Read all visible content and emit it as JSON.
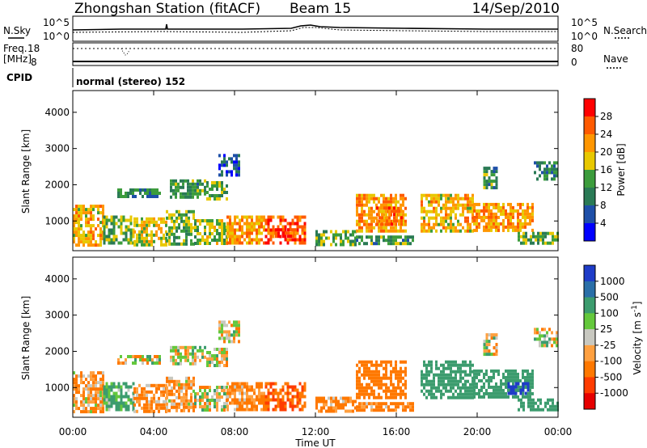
{
  "header": {
    "title": "Zhongshan Station (fitACF)",
    "beam": "Beam 15",
    "date": "14/Sep/2010"
  },
  "noise_panel": {
    "left_label": "N.Sky",
    "right_label": "N.Search",
    "left_ticks": [
      "10^5",
      "10^0"
    ],
    "right_ticks": [
      "10^5",
      "10^0"
    ]
  },
  "freq_panel": {
    "left_label_1": "Freq.",
    "left_label_2": "[MHz]",
    "left_ticks": [
      "18",
      "8"
    ],
    "right_ticks": [
      "80",
      "0"
    ],
    "right_label": "Nave"
  },
  "cpid_panel": {
    "label": "CPID",
    "text": "normal (stereo) 152"
  },
  "x_axis": {
    "label": "Time UT",
    "ticks": [
      "00:00",
      "04:00",
      "08:00",
      "12:00",
      "16:00",
      "20:00",
      "00:00"
    ]
  },
  "colorbars": {
    "power": {
      "label": "Power [dB]",
      "ticks": [
        "28",
        "24",
        "20",
        "16",
        "12",
        "8",
        "4"
      ],
      "colors": [
        "#ff0000",
        "#ff5a00",
        "#ff9600",
        "#e8c800",
        "#3c9c3c",
        "#2a7a55",
        "#1e4fa8",
        "#0000ff"
      ]
    },
    "velocity": {
      "label": "Velocity [m s^-1]",
      "label_main": "Velocity [m s",
      "label_exp": "-1",
      "label_close": "]",
      "ticks": [
        "1000",
        "500",
        "100",
        "25",
        "-25",
        "-100",
        "-500",
        "-1000"
      ],
      "colors": [
        "#1e3cc8",
        "#2a6fa8",
        "#3c9c6e",
        "#64c83c",
        "#c8c8c0",
        "#ffa040",
        "#ff7800",
        "#ff3c00",
        "#e60000"
      ]
    }
  },
  "chart_data": [
    {
      "type": "heatmap",
      "name": "power",
      "xlabel": "Time UT",
      "ylabel": "Slant Range [km]",
      "xlim": [
        0,
        24
      ],
      "ylim": [
        180,
        4600
      ],
      "yticks": [
        1000,
        2000,
        3000,
        4000
      ],
      "colorbar": "Power [dB]",
      "regions": [
        {
          "t": [
            0.0,
            1.5
          ],
          "r": [
            350,
            1450
          ],
          "v": 20
        },
        {
          "t": [
            1.5,
            3.0
          ],
          "r": [
            350,
            1150
          ],
          "v": 14
        },
        {
          "t": [
            3.0,
            4.6
          ],
          "r": [
            350,
            1100
          ],
          "v": 18
        },
        {
          "t": [
            4.6,
            6.0
          ],
          "r": [
            350,
            1300
          ],
          "v": 14
        },
        {
          "t": [
            6.0,
            7.6
          ],
          "r": [
            350,
            1050
          ],
          "v": 16
        },
        {
          "t": [
            7.6,
            9.5
          ],
          "r": [
            400,
            1150
          ],
          "v": 22
        },
        {
          "t": [
            9.5,
            11.5
          ],
          "r": [
            400,
            1150
          ],
          "v": 26
        },
        {
          "t": [
            10.0,
            11.0
          ],
          "r": [
            550,
            800
          ],
          "v": 28
        },
        {
          "t": [
            2.2,
            4.3
          ],
          "r": [
            1700,
            1900
          ],
          "v": 10
        },
        {
          "t": [
            4.8,
            6.6
          ],
          "r": [
            1650,
            2150
          ],
          "v": 12
        },
        {
          "t": [
            6.6,
            7.6
          ],
          "r": [
            1600,
            2100
          ],
          "v": 14
        },
        {
          "t": [
            7.2,
            8.2
          ],
          "r": [
            2250,
            2850
          ],
          "v": 6
        },
        {
          "t": [
            12.0,
            14.0
          ],
          "r": [
            350,
            750
          ],
          "v": 14
        },
        {
          "t": [
            14.0,
            16.8
          ],
          "r": [
            400,
            600
          ],
          "v": 12
        },
        {
          "t": [
            14.0,
            16.5
          ],
          "r": [
            700,
            1750
          ],
          "v": 22
        },
        {
          "t": [
            15.0,
            16.3
          ],
          "r": [
            950,
            1400
          ],
          "v": 26
        },
        {
          "t": [
            17.2,
            19.8
          ],
          "r": [
            700,
            1750
          ],
          "v": 20
        },
        {
          "t": [
            19.8,
            22.8
          ],
          "r": [
            700,
            1500
          ],
          "v": 22
        },
        {
          "t": [
            22.0,
            24.0
          ],
          "r": [
            350,
            700
          ],
          "v": 14
        },
        {
          "t": [
            22.8,
            24.0
          ],
          "r": [
            2150,
            2650
          ],
          "v": 10
        },
        {
          "t": [
            20.3,
            21.0
          ],
          "r": [
            1900,
            2500
          ],
          "v": 12
        }
      ]
    },
    {
      "type": "heatmap",
      "name": "velocity",
      "xlabel": "Time UT",
      "ylabel": "Slant Range [km]",
      "xlim": [
        0,
        24
      ],
      "ylim": [
        180,
        4600
      ],
      "yticks": [
        1000,
        2000,
        3000,
        4000
      ],
      "colorbar": "Velocity [m s^-1]",
      "regions": [
        {
          "t": [
            0.0,
            1.5
          ],
          "r": [
            350,
            1450
          ],
          "v": -100
        },
        {
          "t": [
            1.5,
            3.0
          ],
          "r": [
            350,
            1150
          ],
          "v": 150
        },
        {
          "t": [
            3.0,
            4.6
          ],
          "r": [
            350,
            1100
          ],
          "v": -150
        },
        {
          "t": [
            4.6,
            6.0
          ],
          "r": [
            350,
            1300
          ],
          "v": -100
        },
        {
          "t": [
            6.0,
            7.6
          ],
          "r": [
            350,
            1050
          ],
          "v": 0
        },
        {
          "t": [
            7.6,
            9.5
          ],
          "r": [
            400,
            1150
          ],
          "v": -150
        },
        {
          "t": [
            9.5,
            11.5
          ],
          "r": [
            400,
            1150
          ],
          "v": -500
        },
        {
          "t": [
            2.2,
            4.3
          ],
          "r": [
            1700,
            1900
          ],
          "v": 0
        },
        {
          "t": [
            4.8,
            6.6
          ],
          "r": [
            1650,
            2150
          ],
          "v": 0
        },
        {
          "t": [
            6.6,
            7.6
          ],
          "r": [
            1600,
            2100
          ],
          "v": 0
        },
        {
          "t": [
            7.2,
            8.2
          ],
          "r": [
            2250,
            2850
          ],
          "v": 0
        },
        {
          "t": [
            12.0,
            14.0
          ],
          "r": [
            350,
            750
          ],
          "v": -150
        },
        {
          "t": [
            14.0,
            16.8
          ],
          "r": [
            400,
            600
          ],
          "v": -150
        },
        {
          "t": [
            14.0,
            16.5
          ],
          "r": [
            700,
            1750
          ],
          "v": -300
        },
        {
          "t": [
            17.2,
            19.8
          ],
          "r": [
            700,
            1750
          ],
          "v": 300
        },
        {
          "t": [
            19.8,
            22.8
          ],
          "r": [
            700,
            1500
          ],
          "v": 300
        },
        {
          "t": [
            21.5,
            22.5
          ],
          "r": [
            800,
            1150
          ],
          "v": 800
        },
        {
          "t": [
            22.0,
            24.0
          ],
          "r": [
            350,
            700
          ],
          "v": 300
        },
        {
          "t": [
            22.8,
            24.0
          ],
          "r": [
            2150,
            2650
          ],
          "v": 0
        },
        {
          "t": [
            20.3,
            21.0
          ],
          "r": [
            1900,
            2500
          ],
          "v": 0
        }
      ]
    }
  ]
}
